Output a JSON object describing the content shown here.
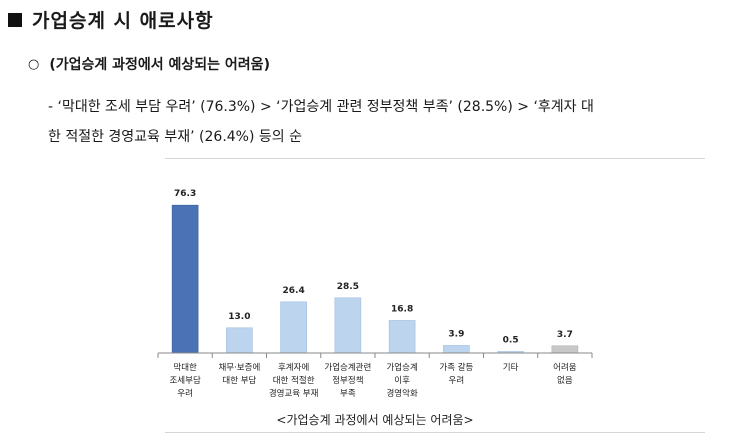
{
  "heading": {
    "marker": "■",
    "title": "가업승계 시 애로사항"
  },
  "subheading": {
    "bullet": "○",
    "text": "(가업승계 과정에서 예상되는 어려움)"
  },
  "description": {
    "line1": "- ‘막대한 조세 부담 우려’ (76.3%) > ‘가업승계 관련 정부정책 부족’ (28.5%) > ‘후계자 대",
    "line2": "한 적절한 경영교육 부재’ (26.4%) 등의 순"
  },
  "chart_data": {
    "type": "bar",
    "caption": "<가업승계 과정에서 예상되는 어려움>",
    "categories": [
      [
        "막대한",
        "조세부담",
        "우려"
      ],
      [
        "채무·보증에",
        "대한 부담"
      ],
      [
        "후계자에",
        "대한 적절한",
        "경영교육 부재"
      ],
      [
        "가업승계관련",
        "정부정책",
        "부족"
      ],
      [
        "가업승계",
        "이후",
        "경영악화"
      ],
      [
        "가족 갈등",
        "우려"
      ],
      [
        "기타"
      ],
      [
        "어려움",
        "없음"
      ]
    ],
    "values": [
      76.3,
      13.0,
      26.4,
      28.5,
      16.8,
      3.9,
      0.5,
      3.7
    ],
    "value_labels": [
      "76.3",
      "13.0",
      "26.4",
      "28.5",
      "16.8",
      "3.9",
      "0.5",
      "3.7"
    ],
    "ylim": [
      0,
      80
    ],
    "grid": false,
    "colors": {
      "highlight": "#4a72b5",
      "highlight_stroke": "#3a5f9e",
      "default": "#bdd4ee",
      "default_stroke": "#9fbde0",
      "neutral": "#c8c8c8",
      "neutral_stroke": "#b0b0b0",
      "axis": "#8a8a8a"
    },
    "bar_color_keys": [
      "highlight",
      "default",
      "default",
      "default",
      "default",
      "default",
      "default",
      "neutral"
    ]
  }
}
